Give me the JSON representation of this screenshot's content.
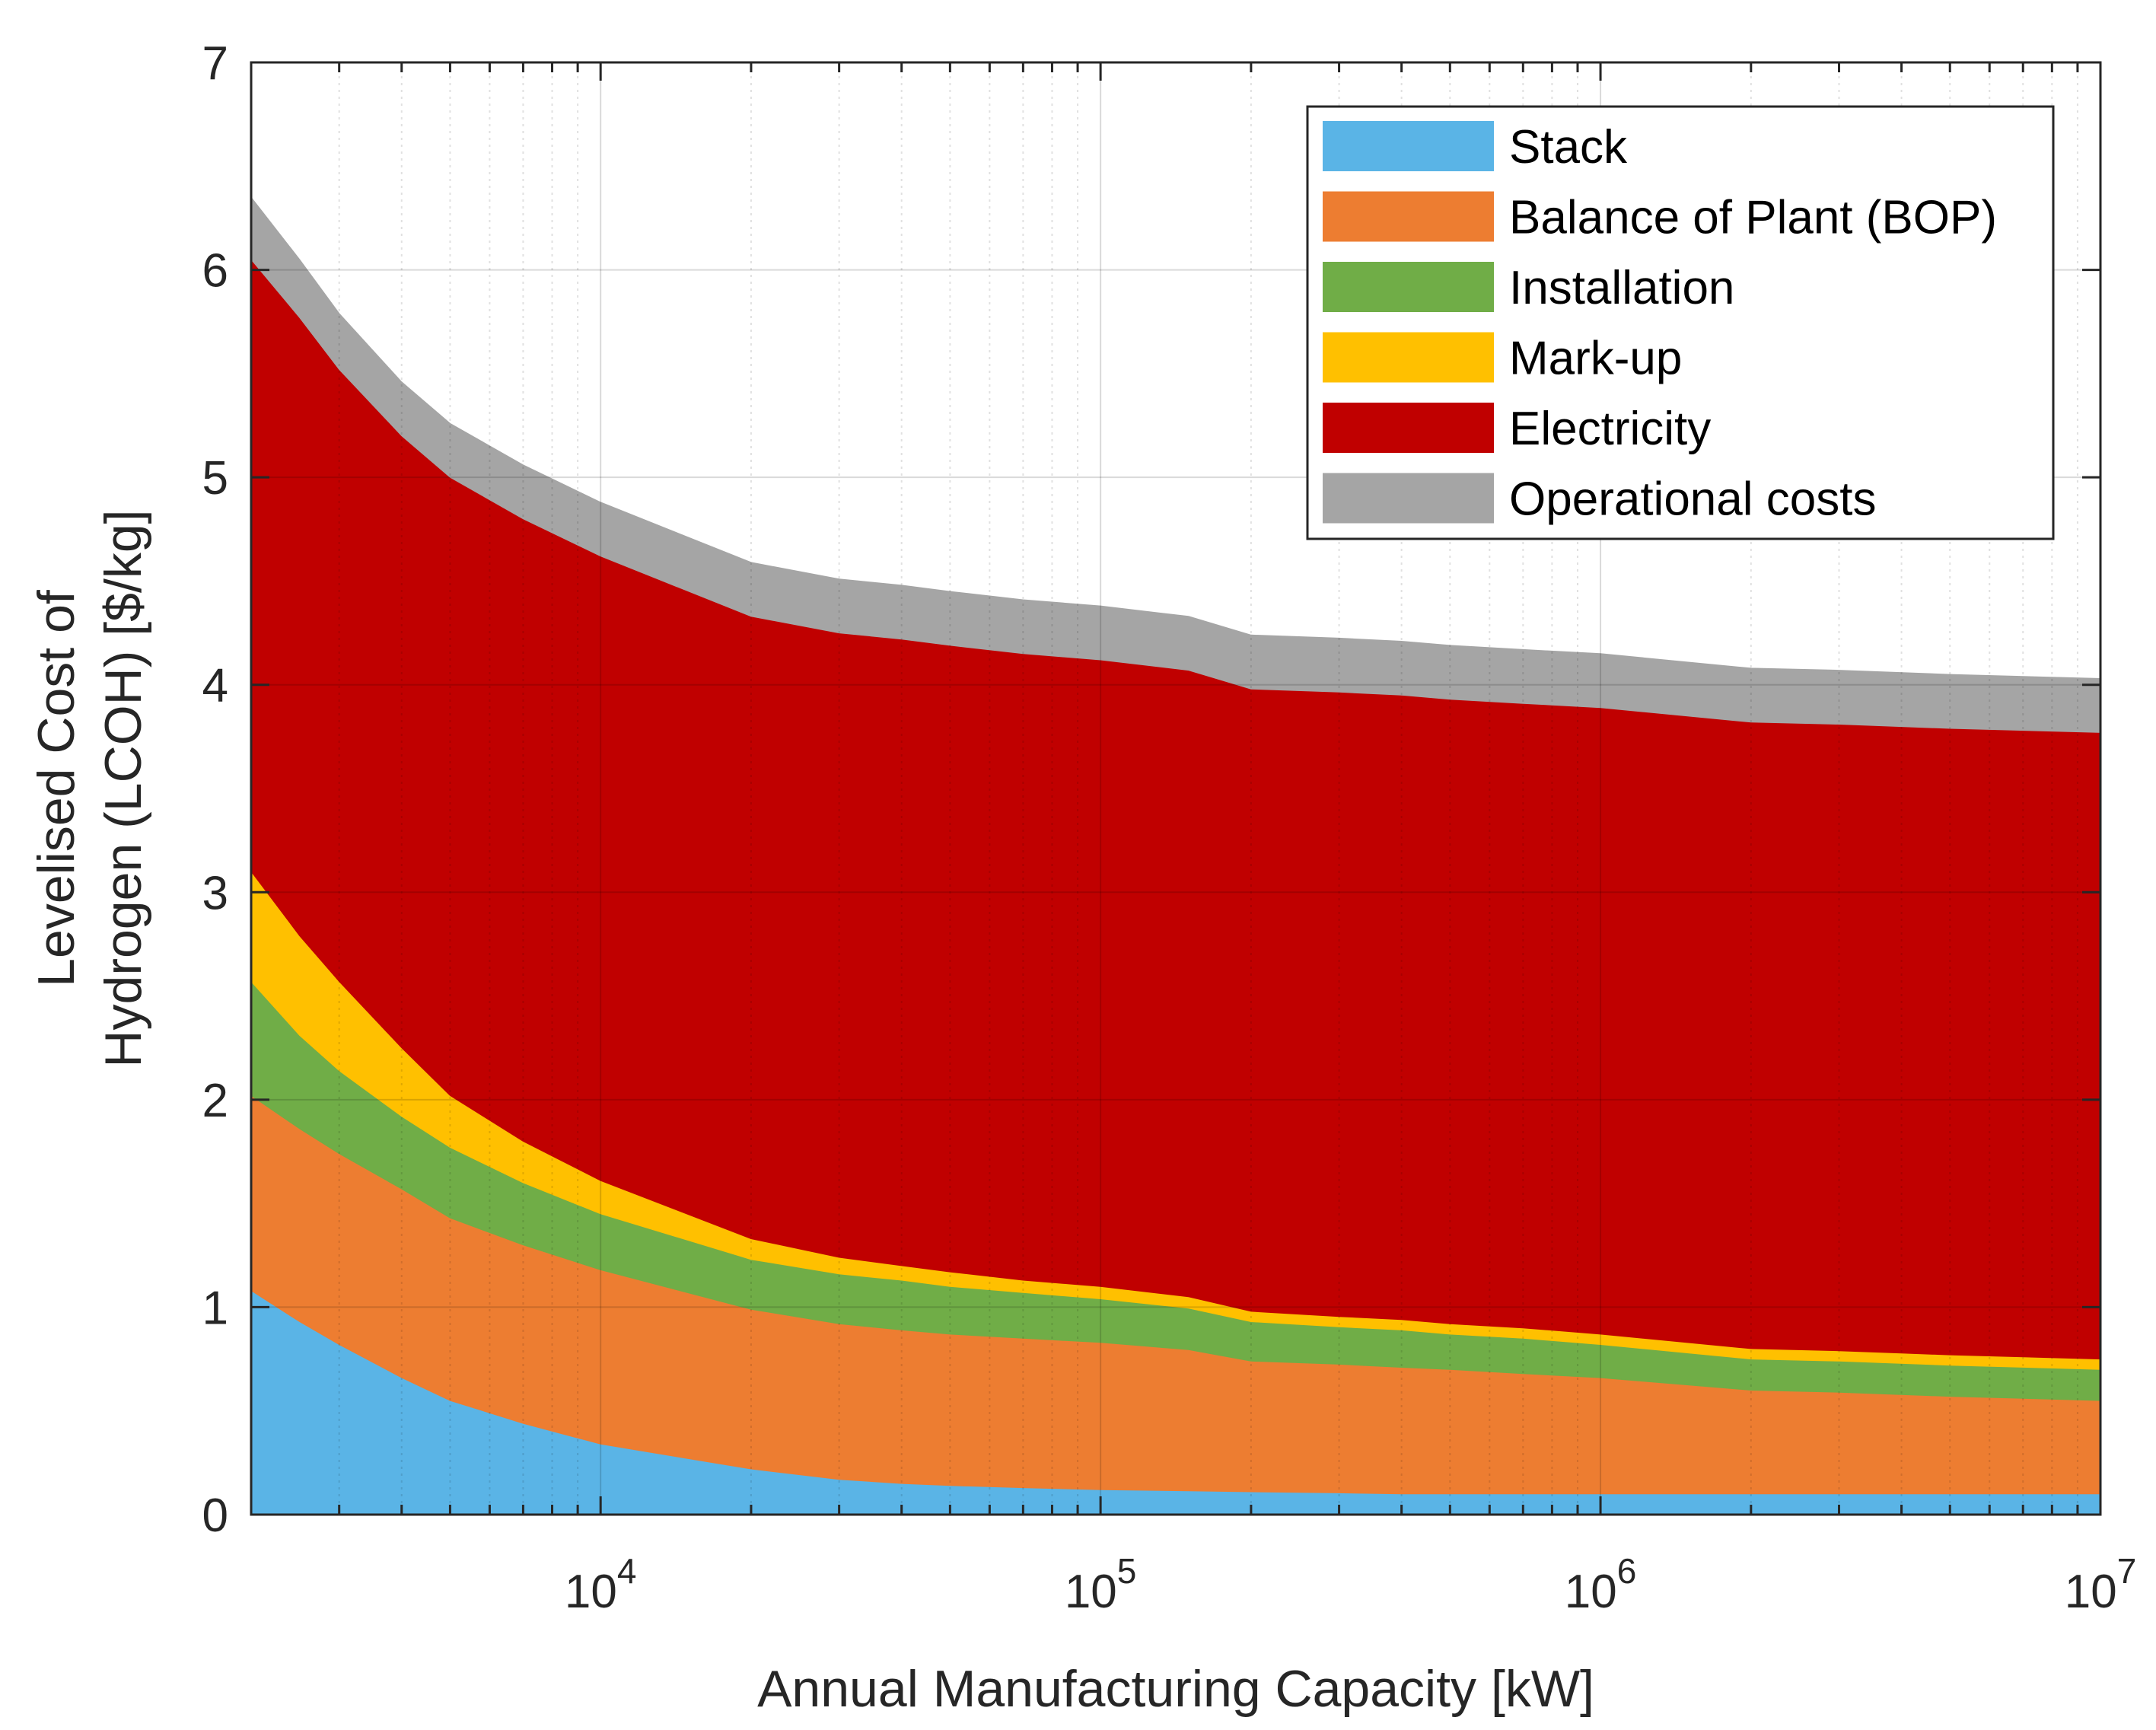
{
  "chart_data": {
    "type": "area",
    "stacked": true,
    "x_scale": "log",
    "xlabel": "Annual Manufacturing Capacity [kW]",
    "ylabel_lines": [
      "Levelised Cost of",
      "Hydrogen (LCOH) [$/kg]"
    ],
    "xlim": [
      2000,
      10000000
    ],
    "ylim": [
      0,
      7
    ],
    "y_ticks": [
      0,
      1,
      2,
      3,
      4,
      5,
      6,
      7
    ],
    "x_ticks": [
      {
        "value": 10000,
        "base": "10",
        "exp": "4"
      },
      {
        "value": 100000,
        "base": "10",
        "exp": "5"
      },
      {
        "value": 1000000,
        "base": "10",
        "exp": "6"
      },
      {
        "value": 10000000,
        "base": "10",
        "exp": "7"
      }
    ],
    "grid": true,
    "legend_position": "top-right",
    "x": [
      2000,
      2500,
      3000,
      4000,
      5000,
      7000,
      10000,
      20000,
      30000,
      40000,
      50000,
      70000,
      100000,
      150000,
      200000,
      300000,
      400000,
      500000,
      700000,
      1000000,
      2000000,
      3000000,
      5000000,
      10000000
    ],
    "series": [
      {
        "name": "Stack",
        "color": "#5ab4e6",
        "values": [
          1.08,
          0.93,
          0.82,
          0.66,
          0.55,
          0.44,
          0.34,
          0.22,
          0.17,
          0.15,
          0.14,
          0.13,
          0.12,
          0.115,
          0.11,
          0.105,
          0.1,
          0.1,
          0.1,
          0.1,
          0.1,
          0.1,
          0.1,
          0.1
        ]
      },
      {
        "name": "Balance of Plant (BOP)",
        "color": "#ed7d31",
        "values": [
          0.94,
          0.93,
          0.92,
          0.91,
          0.88,
          0.86,
          0.84,
          0.77,
          0.75,
          0.74,
          0.73,
          0.72,
          0.71,
          0.68,
          0.63,
          0.62,
          0.61,
          0.6,
          0.58,
          0.56,
          0.5,
          0.49,
          0.47,
          0.45
        ]
      },
      {
        "name": "Installation",
        "color": "#70ad47",
        "values": [
          0.55,
          0.45,
          0.4,
          0.35,
          0.34,
          0.3,
          0.27,
          0.24,
          0.24,
          0.24,
          0.23,
          0.22,
          0.21,
          0.2,
          0.19,
          0.18,
          0.18,
          0.17,
          0.17,
          0.16,
          0.15,
          0.15,
          0.15,
          0.15
        ]
      },
      {
        "name": "Mark-up",
        "color": "#ffc000",
        "values": [
          0.53,
          0.48,
          0.43,
          0.33,
          0.25,
          0.2,
          0.16,
          0.1,
          0.08,
          0.07,
          0.07,
          0.06,
          0.06,
          0.055,
          0.05,
          0.05,
          0.05,
          0.05,
          0.05,
          0.05,
          0.05,
          0.05,
          0.05,
          0.05
        ]
      },
      {
        "name": "Electricity",
        "color": "#c00000",
        "values": [
          2.95,
          2.98,
          2.95,
          2.95,
          2.98,
          3.0,
          3.01,
          3.0,
          3.01,
          3.02,
          3.02,
          3.02,
          3.02,
          3.02,
          3.0,
          3.01,
          3.01,
          3.01,
          3.01,
          3.02,
          3.02,
          3.02,
          3.02,
          3.02
        ]
      },
      {
        "name": "Operational costs",
        "color": "#a5a5a5",
        "values": [
          0.3,
          0.28,
          0.27,
          0.26,
          0.26,
          0.26,
          0.26,
          0.26,
          0.26,
          0.26,
          0.26,
          0.26,
          0.26,
          0.26,
          0.26,
          0.26,
          0.26,
          0.26,
          0.26,
          0.26,
          0.26,
          0.26,
          0.26,
          0.26
        ]
      }
    ]
  }
}
